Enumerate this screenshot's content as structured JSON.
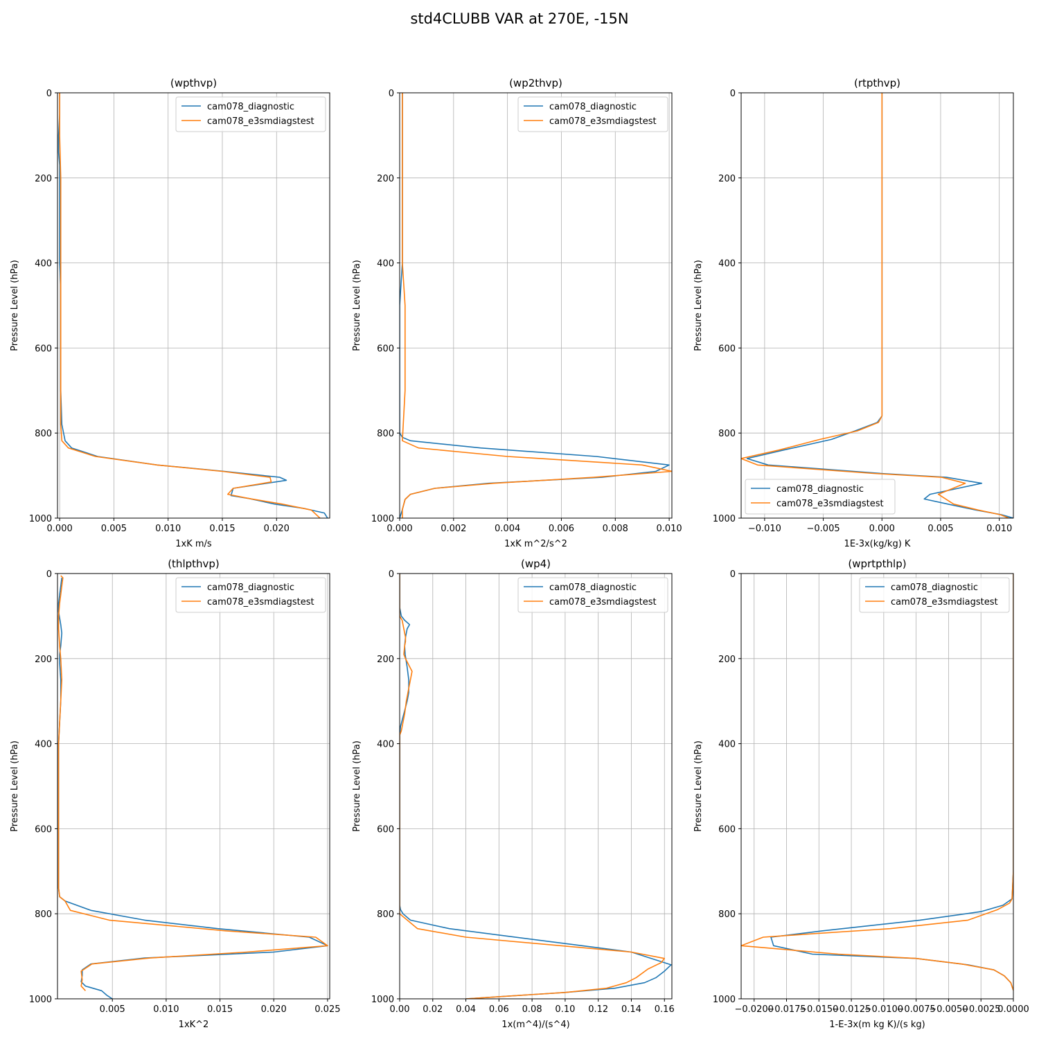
{
  "figure_title": "std4CLUBB VAR at 270E, -15N",
  "colors": {
    "cam078_diagnostic": "#1f77b4",
    "cam078_e3smdiagstest": "#ff7f0e",
    "grid": "#b0b0b0"
  },
  "legend_labels": [
    "cam078_diagnostic",
    "cam078_e3smdiagstest"
  ],
  "chart_data": [
    {
      "type": "line",
      "title": "(wpthvp)",
      "xlabel": "1xK m/s",
      "ylabel": "Pressure Level (hPa)",
      "xlim": [
        -0.0002,
        0.0249
      ],
      "ylim": [
        1000,
        0
      ],
      "xticks": [
        0.0,
        0.005,
        0.01,
        0.015,
        0.02
      ],
      "xtick_labels": [
        "0.000",
        "0.005",
        "0.010",
        "0.015",
        "0.020"
      ],
      "yticks": [
        0,
        200,
        400,
        600,
        800,
        1000
      ],
      "ytick_labels": [
        "0",
        "200",
        "400",
        "600",
        "800",
        "1000"
      ],
      "grid": true,
      "legend_position": "upper right",
      "series": [
        {
          "name": "cam078_diagnostic",
          "x": [
            0.0,
            0.0,
            -0.0001,
            -0.0001,
            0.0,
            0.0,
            0.0,
            0.0,
            0.0,
            0.0001,
            0.0001,
            0.0001,
            0.0001,
            0.0001,
            0.0002,
            0.0005,
            0.0011,
            0.0035,
            0.009,
            0.0152,
            0.0203,
            0.0209,
            0.016,
            0.0158,
            0.0175,
            0.0198,
            0.0225,
            0.0244,
            0.0247
          ],
          "y": [
            0,
            50,
            100,
            140,
            170,
            200,
            250,
            300,
            400,
            450,
            500,
            600,
            650,
            700,
            780,
            818,
            835,
            855,
            875,
            890,
            904,
            911,
            930,
            947,
            954,
            967,
            977,
            988,
            1000
          ]
        },
        {
          "name": "cam078_e3smdiagstest",
          "x": [
            0.0,
            0.0,
            0.0,
            0.0001,
            0.0001,
            0.0001,
            0.0001,
            0.0001,
            0.0001,
            0.0001,
            0.0001,
            0.0001,
            0.0002,
            0.0008,
            0.0033,
            0.009,
            0.015,
            0.0194,
            0.0195,
            0.016,
            0.0155,
            0.0175,
            0.0205,
            0.0232,
            0.024
          ],
          "y": [
            0,
            50,
            100,
            200,
            250,
            300,
            400,
            450,
            500,
            600,
            700,
            780,
            818,
            835,
            855,
            875,
            890,
            904,
            915,
            930,
            944,
            954,
            967,
            981,
            1000
          ]
        }
      ]
    },
    {
      "type": "line",
      "title": "(wp2thvp)",
      "xlabel": "1xK m^2/s^2",
      "ylabel": "Pressure Level (hPa)",
      "xlim": [
        0.0,
        0.0101
      ],
      "ylim": [
        1000,
        0
      ],
      "xticks": [
        0.0,
        0.002,
        0.004,
        0.006,
        0.008,
        0.01
      ],
      "xtick_labels": [
        "0.000",
        "0.002",
        "0.004",
        "0.006",
        "0.008",
        "0.010"
      ],
      "yticks": [
        0,
        200,
        400,
        600,
        800,
        1000
      ],
      "ytick_labels": [
        "0",
        "200",
        "400",
        "600",
        "800",
        "1000"
      ],
      "grid": true,
      "legend_position": "upper right",
      "series": [
        {
          "name": "cam078_diagnostic",
          "x": [
            0.0001,
            0.0001,
            0.0001,
            0.0001,
            0.0001,
            0.0,
            0.0,
            0.0,
            0.0,
            0.0,
            0.0,
            0.0,
            0.0,
            0.0,
            0.0,
            0.0001,
            0.0004,
            0.003,
            0.0073,
            0.01,
            0.0095,
            0.0075,
            0.0033,
            0.0013,
            0.0004,
            0.0002,
            0.0001,
            0.0
          ],
          "y": [
            0,
            100,
            200,
            300,
            400,
            500,
            600,
            650,
            700,
            720,
            740,
            760,
            780,
            790,
            800,
            810,
            818,
            835,
            855,
            875,
            890,
            904,
            918,
            930,
            944,
            956,
            980,
            1000
          ]
        },
        {
          "name": "cam078_e3smdiagstest",
          "x": [
            0.0001,
            0.0001,
            0.0001,
            0.0001,
            0.0001,
            0.0002,
            0.0002,
            0.0002,
            0.0001,
            0.0007,
            0.004,
            0.009,
            0.0101,
            0.0072,
            0.0035,
            0.0013,
            0.0004,
            0.0002,
            0.0001,
            0.0001
          ],
          "y": [
            0,
            100,
            200,
            300,
            400,
            500,
            600,
            700,
            818,
            835,
            855,
            875,
            890,
            904,
            918,
            930,
            944,
            956,
            980,
            1000
          ]
        }
      ]
    },
    {
      "type": "line",
      "title": "(rtpthvp)",
      "xlabel": "1E-3x(kg/kg) K",
      "ylabel": "Pressure Level (hPa)",
      "xlim": [
        -0.012,
        0.0112
      ],
      "ylim": [
        1000,
        0
      ],
      "xticks": [
        -0.01,
        -0.005,
        0.0,
        0.005,
        0.01
      ],
      "xtick_labels": [
        "−0.010",
        "−0.005",
        "0.000",
        "0.005",
        "0.010"
      ],
      "yticks": [
        0,
        200,
        400,
        600,
        800,
        1000
      ],
      "ytick_labels": [
        "0",
        "200",
        "400",
        "600",
        "800",
        "1000"
      ],
      "grid": true,
      "legend_position": "lower left",
      "series": [
        {
          "name": "cam078_diagnostic",
          "x": [
            0.0,
            0.0,
            0.0,
            0.0,
            0.0,
            0.0,
            0.0,
            0.0,
            -0.0004,
            -0.0023,
            -0.0043,
            -0.0084,
            -0.0115,
            -0.0097,
            -0.0001,
            0.0055,
            0.0085,
            0.0041,
            0.0036,
            0.0056,
            0.008,
            0.0102,
            0.0112
          ],
          "y": [
            0,
            200,
            400,
            600,
            700,
            720,
            740,
            760,
            775,
            795,
            815,
            840,
            860,
            875,
            895,
            904,
            918,
            944,
            955,
            967,
            981,
            992,
            1000
          ]
        },
        {
          "name": "cam078_e3smdiagstest",
          "x": [
            0.0,
            0.0,
            0.0,
            0.0,
            0.0,
            0.0,
            0.0,
            0.0,
            -0.0003,
            -0.0021,
            -0.0053,
            -0.0088,
            -0.012,
            -0.0106,
            -0.0007,
            0.0051,
            0.0071,
            0.0048,
            0.0061,
            0.0082,
            0.0101,
            0.0108
          ],
          "y": [
            0,
            200,
            400,
            600,
            700,
            720,
            740,
            760,
            775,
            795,
            815,
            840,
            860,
            875,
            895,
            904,
            918,
            944,
            967,
            981,
            992,
            1000
          ]
        }
      ]
    },
    {
      "type": "line",
      "title": "(thlpthvp)",
      "xlabel": "1xK^2",
      "ylabel": "Pressure Level (hPa)",
      "xlim": [
        -0.0001,
        0.0252
      ],
      "ylim": [
        1000,
        0
      ],
      "xticks": [
        0.005,
        0.01,
        0.015,
        0.02,
        0.025
      ],
      "xtick_labels": [
        "0.005",
        "0.010",
        "0.015",
        "0.020",
        "0.025"
      ],
      "yticks": [
        0,
        200,
        400,
        600,
        800,
        1000
      ],
      "ytick_labels": [
        "0",
        "200",
        "400",
        "600",
        "800",
        "1000"
      ],
      "grid": true,
      "legend_position": "upper right",
      "series": [
        {
          "name": "cam078_diagnostic",
          "x": [
            0.0003,
            0.0002,
            0.0001,
            0.0,
            0.0,
            0.0002,
            0.0003,
            0.0002,
            0.0001,
            0.0001,
            0.0002,
            0.0002,
            0.0001,
            0.0,
            0.0,
            0.0,
            0.0,
            0.0,
            0.0,
            0.0001,
            0.0006,
            0.003,
            0.008,
            0.0148,
            0.0233,
            0.025,
            0.02,
            0.008,
            0.003,
            0.0022,
            0.0022,
            0.0021,
            0.0025,
            0.004,
            0.0045,
            0.005
          ],
          "y": [
            10,
            30,
            50,
            70,
            90,
            120,
            140,
            170,
            190,
            210,
            250,
            300,
            350,
            400,
            500,
            600,
            700,
            720,
            740,
            760,
            770,
            792,
            815,
            835,
            855,
            875,
            890,
            904,
            918,
            932,
            945,
            960,
            970,
            981,
            992,
            1000
          ]
        },
        {
          "name": "cam078_e3smdiagstest",
          "x": [
            0.0002,
            0.0004,
            0.0003,
            0.0002,
            0.0001,
            0.0,
            0.0,
            0.0001,
            0.0002,
            0.0003,
            0.0002,
            0.0001,
            0.0,
            0.0,
            0.0,
            0.0,
            0.0,
            0.0,
            0.0001,
            0.0006,
            0.0011,
            0.0047,
            0.0155,
            0.0239,
            0.025,
            0.0175,
            0.0085,
            0.0031,
            0.0021,
            0.0022,
            0.0021,
            0.0025
          ],
          "y": [
            5,
            10,
            30,
            50,
            70,
            100,
            130,
            170,
            200,
            250,
            300,
            350,
            400,
            500,
            600,
            700,
            720,
            740,
            760,
            770,
            792,
            815,
            840,
            855,
            875,
            890,
            904,
            918,
            935,
            955,
            970,
            981
          ]
        }
      ]
    },
    {
      "type": "line",
      "title": "(wp4)",
      "xlabel": "1x(m^4)/(s^4)",
      "ylabel": "Pressure Level (hPa)",
      "xlim": [
        0.0,
        0.1645
      ],
      "ylim": [
        1000,
        0
      ],
      "xticks": [
        0.0,
        0.02,
        0.04,
        0.06,
        0.08,
        0.1,
        0.12,
        0.14,
        0.16
      ],
      "xtick_labels": [
        "0.00",
        "0.02",
        "0.04",
        "0.06",
        "0.08",
        "0.10",
        "0.12",
        "0.14",
        "0.16"
      ],
      "yticks": [
        0,
        200,
        400,
        600,
        800,
        1000
      ],
      "ytick_labels": [
        "0",
        "200",
        "400",
        "600",
        "800",
        "1000"
      ],
      "grid": true,
      "legend_position": "upper right",
      "series": [
        {
          "name": "cam078_diagnostic",
          "x": [
            0.0,
            0.0,
            0.0,
            0.001,
            0.003,
            0.006,
            0.0045,
            0.0035,
            0.003,
            0.0033,
            0.0045,
            0.0055,
            0.0055,
            0.0045,
            0.0025,
            0.0005,
            0.0,
            0.0,
            0.0,
            0.0,
            0.0,
            0.0,
            0.0,
            0.0,
            0.0,
            0.0005,
            0.002,
            0.0065,
            0.03,
            0.1,
            0.14,
            0.164,
            0.16,
            0.155,
            0.148,
            0.13,
            0.1,
            0.04
          ],
          "y": [
            0,
            50,
            80,
            100,
            110,
            120,
            130,
            150,
            170,
            190,
            220,
            250,
            280,
            300,
            330,
            360,
            380,
            400,
            500,
            600,
            650,
            700,
            750,
            770,
            780,
            790,
            800,
            815,
            835,
            870,
            890,
            920,
            935,
            950,
            962,
            975,
            985,
            1000
          ]
        },
        {
          "name": "cam078_e3smdiagstest",
          "x": [
            0.0,
            0.0,
            0.0,
            0.0,
            0.0015,
            0.002,
            0.0025,
            0.0035,
            0.0035,
            0.003,
            0.0025,
            0.0035,
            0.0055,
            0.0075,
            0.006,
            0.004,
            0.003,
            0.002,
            0.001,
            0.0,
            0.0,
            0.0,
            0.0,
            0.0,
            0.0,
            0.0,
            0.0,
            0.0,
            0.0108,
            0.04,
            0.14,
            0.16,
            0.158,
            0.15,
            0.143,
            0.137,
            0.125,
            0.1,
            0.04
          ],
          "y": [
            0,
            50,
            80,
            100,
            110,
            120,
            130,
            150,
            160,
            170,
            190,
            200,
            215,
            230,
            260,
            300,
            330,
            350,
            370,
            380,
            400,
            500,
            600,
            700,
            750,
            770,
            780,
            800,
            835,
            855,
            890,
            905,
            915,
            930,
            950,
            962,
            975,
            985,
            1000
          ]
        }
      ]
    },
    {
      "type": "line",
      "title": "(wprtpthlp)",
      "xlabel": "1-E-3x(m kg K)/(s kg)",
      "ylabel": "Pressure Level (hPa)",
      "xlim": [
        -0.021,
        0.0
      ],
      "ylim": [
        1000,
        0
      ],
      "xticks": [
        -0.02,
        -0.0175,
        -0.015,
        -0.0125,
        -0.01,
        -0.0075,
        -0.005,
        -0.0025,
        0.0
      ],
      "xtick_labels": [
        "−0.0200",
        "−0.0175",
        "−0.0150",
        "−0.0125",
        "−0.0100",
        "−0.0075",
        "−0.0050",
        "−0.0025",
        "0.0000"
      ],
      "yticks": [
        0,
        200,
        400,
        600,
        800,
        1000
      ],
      "ytick_labels": [
        "0",
        "200",
        "400",
        "600",
        "800",
        "1000"
      ],
      "grid": true,
      "legend_position": "upper right",
      "series": [
        {
          "name": "cam078_diagnostic",
          "x": [
            0.0,
            0.0,
            0.0,
            0.0,
            0.0,
            -0.0001,
            -0.0008,
            -0.0025,
            -0.0072,
            -0.0147,
            -0.0187,
            -0.0185,
            -0.0155,
            -0.0075,
            -0.0035,
            -0.0015,
            -0.0007,
            -0.0002,
            0.0
          ],
          "y": [
            0,
            200,
            400,
            600,
            700,
            765,
            780,
            795,
            815,
            840,
            855,
            875,
            895,
            905,
            920,
            932,
            946,
            962,
            980
          ]
        },
        {
          "name": "cam078_e3smdiagstest",
          "x": [
            0.0,
            0.0,
            0.0,
            0.0,
            0.0,
            -0.0001,
            -0.0003,
            -0.0012,
            -0.0035,
            -0.0095,
            -0.0155,
            -0.0193,
            -0.021,
            -0.0135,
            -0.0075,
            -0.004,
            -0.0015,
            -0.0007,
            -0.0002,
            0.0
          ],
          "y": [
            0,
            200,
            400,
            600,
            700,
            765,
            775,
            790,
            815,
            835,
            847,
            855,
            875,
            895,
            905,
            918,
            932,
            946,
            962,
            980
          ]
        }
      ]
    }
  ]
}
